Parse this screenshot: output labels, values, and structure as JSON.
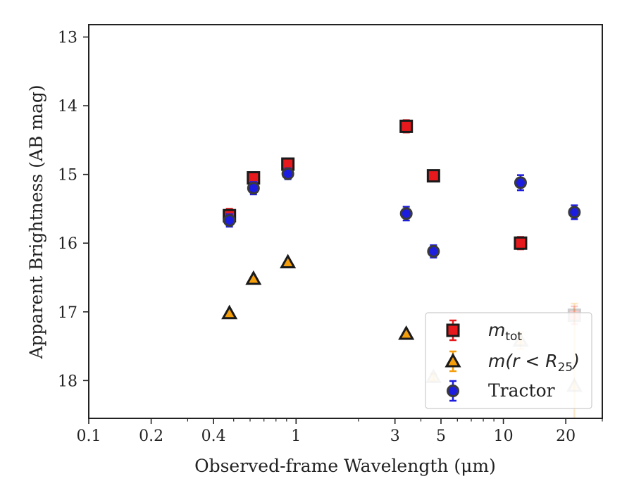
{
  "chart_data": {
    "type": "scatter",
    "title": "",
    "xlabel": "Observed-frame Wavelength (μm)",
    "ylabel": "Apparent Brightness (AB mag)",
    "xscale": "log",
    "xlim": [
      0.1,
      30
    ],
    "ylim": [
      18.55,
      12.82
    ],
    "y_inverted": true,
    "grid": false,
    "legend_position": "lower-right",
    "xticks": [
      {
        "value": 0.1,
        "label": "0.1"
      },
      {
        "value": 0.2,
        "label": "0.2"
      },
      {
        "value": 0.4,
        "label": "0.4"
      },
      {
        "value": 1,
        "label": "1"
      },
      {
        "value": 3,
        "label": "3"
      },
      {
        "value": 5,
        "label": "5"
      },
      {
        "value": 10,
        "label": "10"
      },
      {
        "value": 20,
        "label": "20"
      }
    ],
    "xticks_minor": [
      0.3,
      0.5,
      0.6,
      0.7,
      0.8,
      0.9,
      2,
      4,
      6,
      7,
      8,
      9,
      30
    ],
    "yticks": [
      {
        "value": 13,
        "label": "13"
      },
      {
        "value": 14,
        "label": "14"
      },
      {
        "value": 15,
        "label": "15"
      },
      {
        "value": 16,
        "label": "16"
      },
      {
        "value": 17,
        "label": "17"
      },
      {
        "value": 18,
        "label": "18"
      }
    ],
    "series": [
      {
        "name": "m_tot",
        "legend_text": {
          "base": "m",
          "sub": "tot"
        },
        "marker": "square",
        "color": "#e8191d",
        "edge": "#1a1a1a",
        "points": [
          {
            "x": 0.477,
            "y": 15.6,
            "err": 0.1
          },
          {
            "x": 0.623,
            "y": 15.05,
            "err": 0.08
          },
          {
            "x": 0.913,
            "y": 14.85,
            "err": 0.08
          },
          {
            "x": 3.4,
            "y": 14.3,
            "err": 0.09
          },
          {
            "x": 4.6,
            "y": 15.02,
            "err": 0.08
          },
          {
            "x": 12.1,
            "y": 16.0,
            "err": 0.09
          },
          {
            "x": 22.0,
            "y": 17.05,
            "err": 0.13
          }
        ]
      },
      {
        "name": "m(r < R25)",
        "legend_text": {
          "base": "m(r < R",
          "sub": "25",
          "tail": ")"
        },
        "marker": "triangle",
        "color": "#f59e0b",
        "edge": "#1a1a1a",
        "points": [
          {
            "x": 0.477,
            "y": 17.02,
            "err": 0
          },
          {
            "x": 0.623,
            "y": 16.52,
            "err": 0
          },
          {
            "x": 0.913,
            "y": 16.28,
            "err": 0
          },
          {
            "x": 3.4,
            "y": 17.32,
            "err": 0
          },
          {
            "x": 4.6,
            "y": 17.95,
            "err": 0.05
          },
          {
            "x": 12.1,
            "y": 17.42,
            "err": 0.12
          },
          {
            "x": 22.0,
            "y": 18.08,
            "err": 1.2
          }
        ]
      },
      {
        "name": "Tractor",
        "legend_text": {
          "base": "Tractor"
        },
        "marker": "circle",
        "color": "#1d1de0",
        "edge": "#3a3a3a",
        "points": [
          {
            "x": 0.477,
            "y": 15.67,
            "err": 0.09
          },
          {
            "x": 0.623,
            "y": 15.2,
            "err": 0.09
          },
          {
            "x": 0.913,
            "y": 14.99,
            "err": 0.08
          },
          {
            "x": 3.4,
            "y": 15.57,
            "err": 0.1
          },
          {
            "x": 4.6,
            "y": 16.12,
            "err": 0.09
          },
          {
            "x": 12.1,
            "y": 15.12,
            "err": 0.11
          },
          {
            "x": 22.0,
            "y": 15.55,
            "err": 0.1
          }
        ]
      }
    ]
  }
}
